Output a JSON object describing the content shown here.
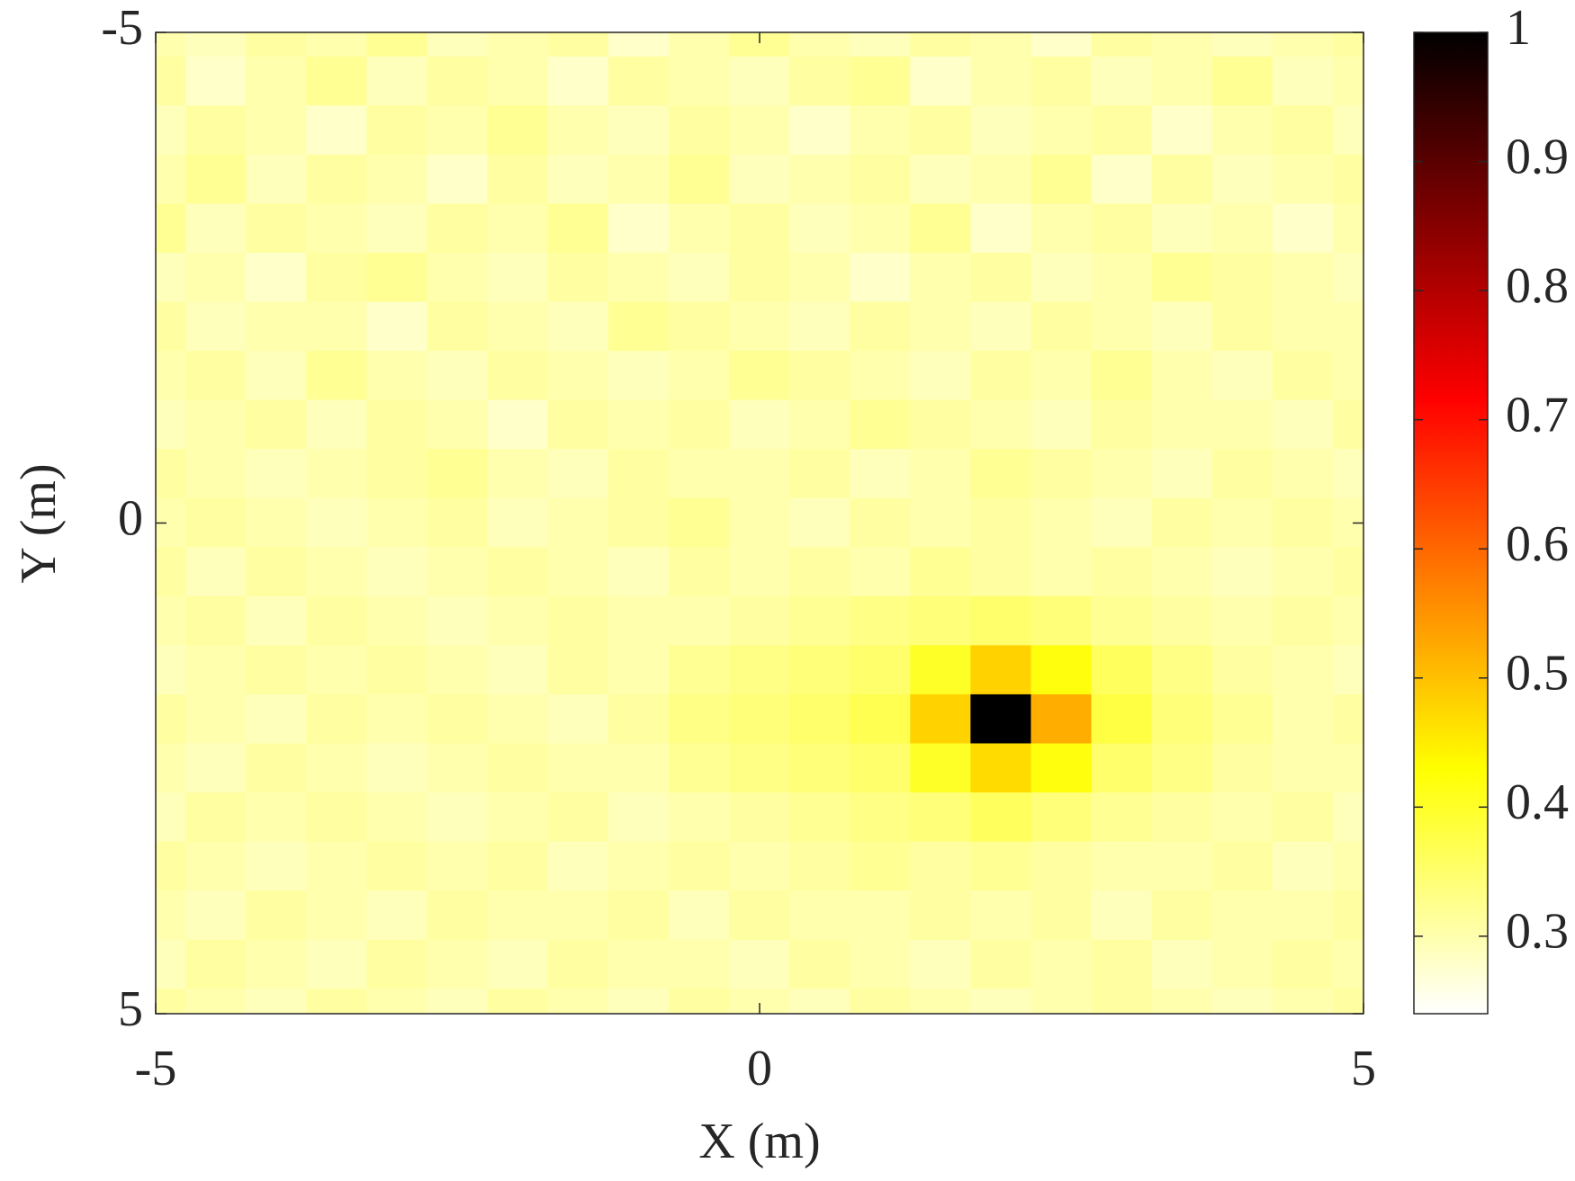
{
  "chart_data": {
    "type": "heatmap",
    "x_label": "X (m)",
    "y_label": "Y (m)",
    "x": [
      -5,
      -4.5,
      -4,
      -3.5,
      -3,
      -2.5,
      -2,
      -1.5,
      -1,
      -0.5,
      0,
      0.5,
      1,
      1.5,
      2,
      2.5,
      3,
      3.5,
      4,
      4.5,
      5
    ],
    "y": [
      -5,
      -4.5,
      -4,
      -3.5,
      -3,
      -2.5,
      -2,
      -1.5,
      -1,
      -0.5,
      0,
      0.5,
      1,
      1.5,
      2,
      2.5,
      3,
      3.5,
      4,
      4.5,
      5
    ],
    "values": [
      [
        0.3,
        0.29,
        0.31,
        0.3,
        0.32,
        0.29,
        0.3,
        0.31,
        0.28,
        0.3,
        0.32,
        0.3,
        0.29,
        0.31,
        0.3,
        0.28,
        0.31,
        0.3,
        0.29,
        0.3,
        0.31
      ],
      [
        0.31,
        0.28,
        0.3,
        0.32,
        0.29,
        0.31,
        0.3,
        0.28,
        0.31,
        0.3,
        0.29,
        0.31,
        0.32,
        0.28,
        0.3,
        0.31,
        0.29,
        0.3,
        0.32,
        0.29,
        0.3
      ],
      [
        0.29,
        0.31,
        0.3,
        0.28,
        0.31,
        0.3,
        0.32,
        0.3,
        0.29,
        0.31,
        0.3,
        0.28,
        0.3,
        0.31,
        0.29,
        0.3,
        0.31,
        0.28,
        0.3,
        0.31,
        0.29
      ],
      [
        0.3,
        0.32,
        0.29,
        0.31,
        0.3,
        0.28,
        0.31,
        0.29,
        0.3,
        0.32,
        0.29,
        0.3,
        0.31,
        0.29,
        0.3,
        0.32,
        0.28,
        0.31,
        0.29,
        0.3,
        0.31
      ],
      [
        0.32,
        0.29,
        0.31,
        0.3,
        0.29,
        0.31,
        0.3,
        0.32,
        0.28,
        0.3,
        0.31,
        0.29,
        0.3,
        0.32,
        0.28,
        0.3,
        0.31,
        0.29,
        0.3,
        0.28,
        0.3
      ],
      [
        0.29,
        0.3,
        0.28,
        0.31,
        0.32,
        0.3,
        0.29,
        0.31,
        0.3,
        0.29,
        0.31,
        0.3,
        0.28,
        0.3,
        0.31,
        0.29,
        0.3,
        0.32,
        0.31,
        0.3,
        0.29
      ],
      [
        0.31,
        0.29,
        0.3,
        0.3,
        0.28,
        0.31,
        0.3,
        0.29,
        0.32,
        0.31,
        0.3,
        0.29,
        0.31,
        0.3,
        0.29,
        0.31,
        0.3,
        0.29,
        0.31,
        0.3,
        0.3
      ],
      [
        0.3,
        0.31,
        0.29,
        0.32,
        0.3,
        0.29,
        0.31,
        0.3,
        0.29,
        0.3,
        0.32,
        0.31,
        0.3,
        0.29,
        0.31,
        0.3,
        0.32,
        0.3,
        0.29,
        0.31,
        0.3
      ],
      [
        0.29,
        0.3,
        0.31,
        0.29,
        0.31,
        0.3,
        0.28,
        0.31,
        0.3,
        0.31,
        0.29,
        0.3,
        0.32,
        0.31,
        0.3,
        0.29,
        0.31,
        0.3,
        0.3,
        0.29,
        0.31
      ],
      [
        0.31,
        0.3,
        0.29,
        0.3,
        0.31,
        0.32,
        0.3,
        0.29,
        0.31,
        0.3,
        0.3,
        0.31,
        0.29,
        0.3,
        0.32,
        0.31,
        0.3,
        0.29,
        0.31,
        0.3,
        0.29
      ],
      [
        0.3,
        0.31,
        0.3,
        0.29,
        0.3,
        0.31,
        0.29,
        0.3,
        0.31,
        0.32,
        0.3,
        0.29,
        0.31,
        0.3,
        0.31,
        0.3,
        0.29,
        0.31,
        0.3,
        0.31,
        0.3
      ],
      [
        0.31,
        0.29,
        0.31,
        0.3,
        0.29,
        0.3,
        0.31,
        0.3,
        0.29,
        0.31,
        0.3,
        0.31,
        0.3,
        0.32,
        0.31,
        0.3,
        0.31,
        0.3,
        0.29,
        0.3,
        0.31
      ],
      [
        0.3,
        0.31,
        0.29,
        0.31,
        0.3,
        0.29,
        0.3,
        0.31,
        0.3,
        0.3,
        0.31,
        0.32,
        0.33,
        0.34,
        0.35,
        0.34,
        0.32,
        0.31,
        0.3,
        0.31,
        0.3
      ],
      [
        0.29,
        0.3,
        0.31,
        0.3,
        0.31,
        0.3,
        0.29,
        0.31,
        0.3,
        0.32,
        0.33,
        0.34,
        0.35,
        0.4,
        0.48,
        0.42,
        0.36,
        0.33,
        0.31,
        0.3,
        0.29
      ],
      [
        0.31,
        0.3,
        0.29,
        0.31,
        0.3,
        0.31,
        0.3,
        0.29,
        0.31,
        0.33,
        0.34,
        0.35,
        0.37,
        0.48,
        1,
        0.52,
        0.38,
        0.34,
        0.32,
        0.3,
        0.31
      ],
      [
        0.3,
        0.29,
        0.31,
        0.3,
        0.29,
        0.3,
        0.31,
        0.3,
        0.3,
        0.32,
        0.33,
        0.34,
        0.35,
        0.4,
        0.47,
        0.42,
        0.35,
        0.33,
        0.31,
        0.3,
        0.3
      ],
      [
        0.29,
        0.31,
        0.3,
        0.31,
        0.3,
        0.29,
        0.3,
        0.31,
        0.29,
        0.3,
        0.31,
        0.32,
        0.33,
        0.34,
        0.36,
        0.34,
        0.32,
        0.31,
        0.3,
        0.31,
        0.29
      ],
      [
        0.31,
        0.3,
        0.29,
        0.3,
        0.31,
        0.3,
        0.31,
        0.29,
        0.3,
        0.31,
        0.3,
        0.31,
        0.32,
        0.31,
        0.32,
        0.31,
        0.3,
        0.3,
        0.31,
        0.29,
        0.3
      ],
      [
        0.3,
        0.29,
        0.31,
        0.3,
        0.29,
        0.31,
        0.3,
        0.3,
        0.31,
        0.29,
        0.31,
        0.3,
        0.3,
        0.31,
        0.3,
        0.31,
        0.29,
        0.31,
        0.3,
        0.3,
        0.31
      ],
      [
        0.29,
        0.31,
        0.3,
        0.29,
        0.31,
        0.3,
        0.29,
        0.31,
        0.3,
        0.3,
        0.29,
        0.31,
        0.3,
        0.29,
        0.31,
        0.3,
        0.31,
        0.29,
        0.3,
        0.31,
        0.3
      ],
      [
        0.31,
        0.3,
        0.29,
        0.31,
        0.3,
        0.29,
        0.31,
        0.3,
        0.29,
        0.31,
        0.3,
        0.29,
        0.31,
        0.3,
        0.29,
        0.3,
        0.31,
        0.3,
        0.29,
        0.3,
        0.31
      ]
    ],
    "xlim": [
      -5,
      5
    ],
    "ylim": [
      -5,
      5
    ],
    "y_direction": "reverse",
    "xticks": [
      -5,
      0,
      5
    ],
    "yticks": [
      -5,
      0,
      5
    ],
    "colormap": "hot",
    "colormap_reversed": true,
    "colorbar": {
      "clim": [
        0.24,
        1
      ],
      "ticks": [
        0.3,
        0.4,
        0.5,
        0.6,
        0.7,
        0.8,
        0.9,
        1
      ]
    }
  }
}
